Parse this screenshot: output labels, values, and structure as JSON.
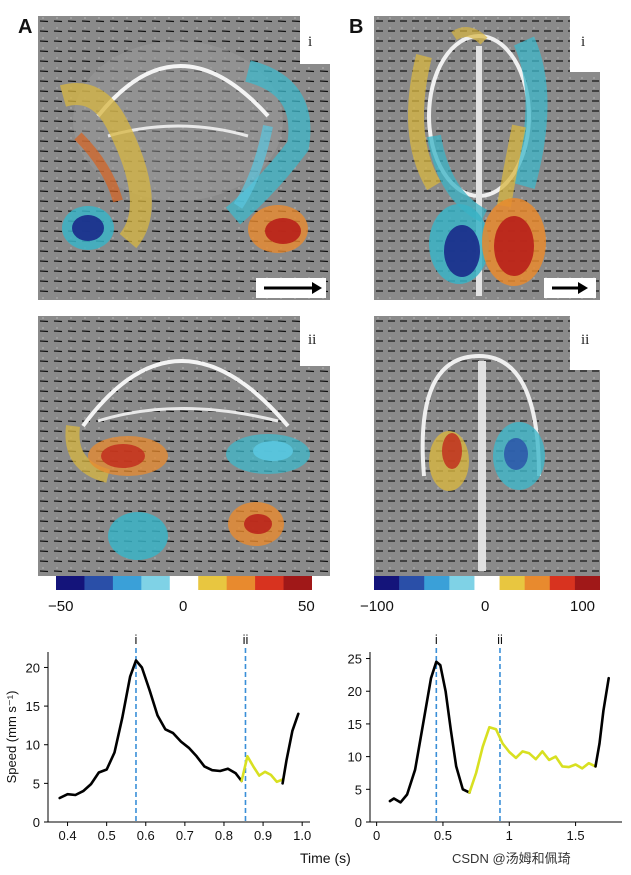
{
  "panels": {
    "A": {
      "letter": "A",
      "sub_i": "i",
      "sub_ii": "ii",
      "colorbar": {
        "min_label": "−50",
        "mid_label": "0",
        "max_label": "50",
        "colors": [
          "#14147a",
          "#2a4fa8",
          "#3aa0d8",
          "#7fd2e6",
          "#ffffff",
          "#e8c640",
          "#e88a2e",
          "#d8331f",
          "#a01818"
        ]
      }
    },
    "B": {
      "letter": "B",
      "sub_i": "i",
      "sub_ii": "ii",
      "colorbar": {
        "min_label": "−100",
        "mid_label": "0",
        "max_label": "100",
        "colors": [
          "#14147a",
          "#2a4fa8",
          "#3aa0d8",
          "#7fd2e6",
          "#ffffff",
          "#e8c640",
          "#e88a2e",
          "#d8331f",
          "#a01818"
        ]
      }
    }
  },
  "chart_data": [
    {
      "type": "line",
      "ylabel": "Speed (mm s⁻¹)",
      "xlim": [
        0.35,
        1.02
      ],
      "ylim": [
        0,
        22
      ],
      "xticks": [
        0.4,
        0.5,
        0.6,
        0.7,
        0.8,
        0.9,
        1.0
      ],
      "xtick_labels": [
        "0.4",
        "0.5",
        "0.6",
        "0.7",
        "0.8",
        "0.9",
        "1.0"
      ],
      "yticks": [
        0,
        5,
        10,
        15,
        20
      ],
      "ytick_labels": [
        "0",
        "5",
        "10",
        "15",
        "20"
      ],
      "markers": [
        {
          "label": "i",
          "x": 0.575
        },
        {
          "label": "ii",
          "x": 0.855
        }
      ],
      "series": [
        {
          "color": "#000000",
          "x": [
            0.38,
            0.4,
            0.42,
            0.44,
            0.46,
            0.48,
            0.5,
            0.52,
            0.54,
            0.56,
            0.575,
            0.59,
            0.61,
            0.63,
            0.65,
            0.67,
            0.69,
            0.71,
            0.73,
            0.75,
            0.77,
            0.79,
            0.81,
            0.83,
            0.845
          ],
          "y": [
            3.1,
            3.6,
            3.5,
            4.0,
            4.9,
            6.4,
            6.8,
            9.0,
            13.5,
            18.8,
            20.9,
            20.0,
            17.0,
            13.8,
            12.0,
            11.5,
            10.4,
            9.6,
            8.5,
            7.2,
            6.7,
            6.6,
            6.9,
            6.3,
            5.3
          ]
        },
        {
          "color": "#d8e021",
          "x": [
            0.845,
            0.86,
            0.875,
            0.89,
            0.905,
            0.92,
            0.935,
            0.95
          ],
          "y": [
            5.3,
            8.5,
            7.2,
            6.0,
            6.5,
            6.1,
            5.2,
            5.5
          ]
        },
        {
          "color": "#000000",
          "x": [
            0.95,
            0.96,
            0.975,
            0.99
          ],
          "y": [
            5.0,
            8.0,
            11.8,
            14.0
          ]
        }
      ]
    },
    {
      "type": "line",
      "xlabel": "Time (s)",
      "xlim": [
        -0.05,
        1.85
      ],
      "ylim": [
        0,
        26
      ],
      "xticks": [
        0,
        0.5,
        1.0,
        1.5
      ],
      "xtick_labels": [
        "0",
        "0.5",
        "1",
        "1.5"
      ],
      "yticks": [
        0,
        5,
        10,
        15,
        20,
        25
      ],
      "ytick_labels": [
        "0",
        "5",
        "10",
        "15",
        "20",
        "25"
      ],
      "markers": [
        {
          "label": "i",
          "x": 0.45
        },
        {
          "label": "ii",
          "x": 0.93
        }
      ],
      "series": [
        {
          "color": "#000000",
          "x": [
            0.1,
            0.13,
            0.18,
            0.23,
            0.29,
            0.35,
            0.41,
            0.45,
            0.48,
            0.52,
            0.56,
            0.6,
            0.65,
            0.7
          ],
          "y": [
            3.2,
            3.6,
            3.0,
            4.2,
            8.0,
            15.0,
            22.0,
            24.5,
            24.0,
            20.0,
            14.0,
            8.5,
            5.0,
            4.5
          ]
        },
        {
          "color": "#d8e021",
          "x": [
            0.7,
            0.75,
            0.8,
            0.85,
            0.9,
            0.95,
            1.0,
            1.05,
            1.1,
            1.15,
            1.2,
            1.25,
            1.3,
            1.35,
            1.4,
            1.45,
            1.5,
            1.55,
            1.6,
            1.65
          ],
          "y": [
            4.5,
            7.5,
            11.5,
            14.5,
            14.2,
            12.0,
            10.7,
            9.8,
            10.8,
            10.5,
            9.6,
            10.8,
            9.5,
            10.0,
            8.5,
            8.4,
            8.8,
            8.2,
            9.0,
            8.5
          ]
        },
        {
          "color": "#000000",
          "x": [
            1.65,
            1.68,
            1.71,
            1.75
          ],
          "y": [
            8.5,
            12.0,
            17.0,
            22.0
          ]
        }
      ]
    }
  ],
  "watermark": "CSDN @汤姆和佩琦"
}
